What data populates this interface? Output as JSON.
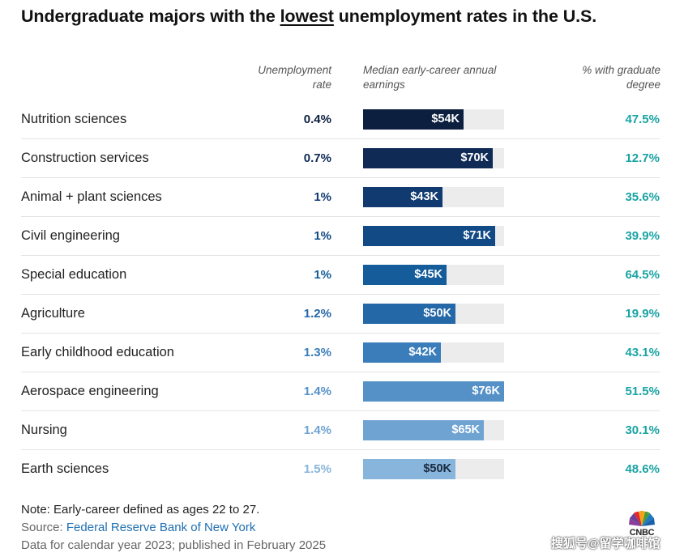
{
  "header": {
    "title_before": "Undergraduate majors with the ",
    "title_highlight": "lowest",
    "title_after": " unemployment rates in the U.S.",
    "col_rate": "Unemployment rate",
    "col_earnings": "Median early-career annual earnings",
    "col_grad": "% with graduate degree"
  },
  "chart_data": {
    "type": "table",
    "title": "Undergraduate majors with the lowest unemployment rates in the U.S.",
    "columns": [
      "Unemployment rate",
      "Median early-career annual earnings",
      "% with graduate degree"
    ],
    "earnings_axis_max": 76,
    "rows": [
      {
        "major": "Nutrition sciences",
        "rate": "0.4%",
        "earnings": 54,
        "earnings_label": "$54K",
        "grad": "47.5%",
        "color": "#0c1f3f"
      },
      {
        "major": "Construction services",
        "rate": "0.7%",
        "earnings": 70,
        "earnings_label": "$70K",
        "grad": "12.7%",
        "color": "#0e2a55"
      },
      {
        "major": "Animal + plant sciences",
        "rate": "1%",
        "earnings": 43,
        "earnings_label": "$43K",
        "grad": "35.6%",
        "color": "#103a70"
      },
      {
        "major": "Civil engineering",
        "rate": "1%",
        "earnings": 71,
        "earnings_label": "$71K",
        "grad": "39.9%",
        "color": "#114a85"
      },
      {
        "major": "Special education",
        "rate": "1%",
        "earnings": 45,
        "earnings_label": "$45K",
        "grad": "64.5%",
        "color": "#145c9a"
      },
      {
        "major": "Agriculture",
        "rate": "1.2%",
        "earnings": 50,
        "earnings_label": "$50K",
        "grad": "19.9%",
        "color": "#2468a8"
      },
      {
        "major": "Early childhood education",
        "rate": "1.3%",
        "earnings": 42,
        "earnings_label": "$42K",
        "grad": "43.1%",
        "color": "#3a7dba"
      },
      {
        "major": "Aerospace engineering",
        "rate": "1.4%",
        "earnings": 76,
        "earnings_label": "$76K",
        "grad": "51.5%",
        "color": "#5591c7"
      },
      {
        "major": "Nursing",
        "rate": "1.4%",
        "earnings": 65,
        "earnings_label": "$65K",
        "grad": "30.1%",
        "color": "#6fa3d2"
      },
      {
        "major": "Earth sciences",
        "rate": "1.5%",
        "earnings": 50,
        "earnings_label": "$50K",
        "grad": "48.6%",
        "color": "#88b5dc",
        "label_color": "#1a2a40"
      }
    ]
  },
  "footer": {
    "note": "Note: Early-career defined as ages 22 to 27.",
    "source_prefix": "Source: ",
    "source_link": "Federal Reserve Bank of New York",
    "data_line": "Data for calendar year 2023; published in February 2025"
  },
  "logo": {
    "text": "CNBC"
  },
  "watermark": {
    "text": "搜狐号@留学咖啡馆"
  }
}
